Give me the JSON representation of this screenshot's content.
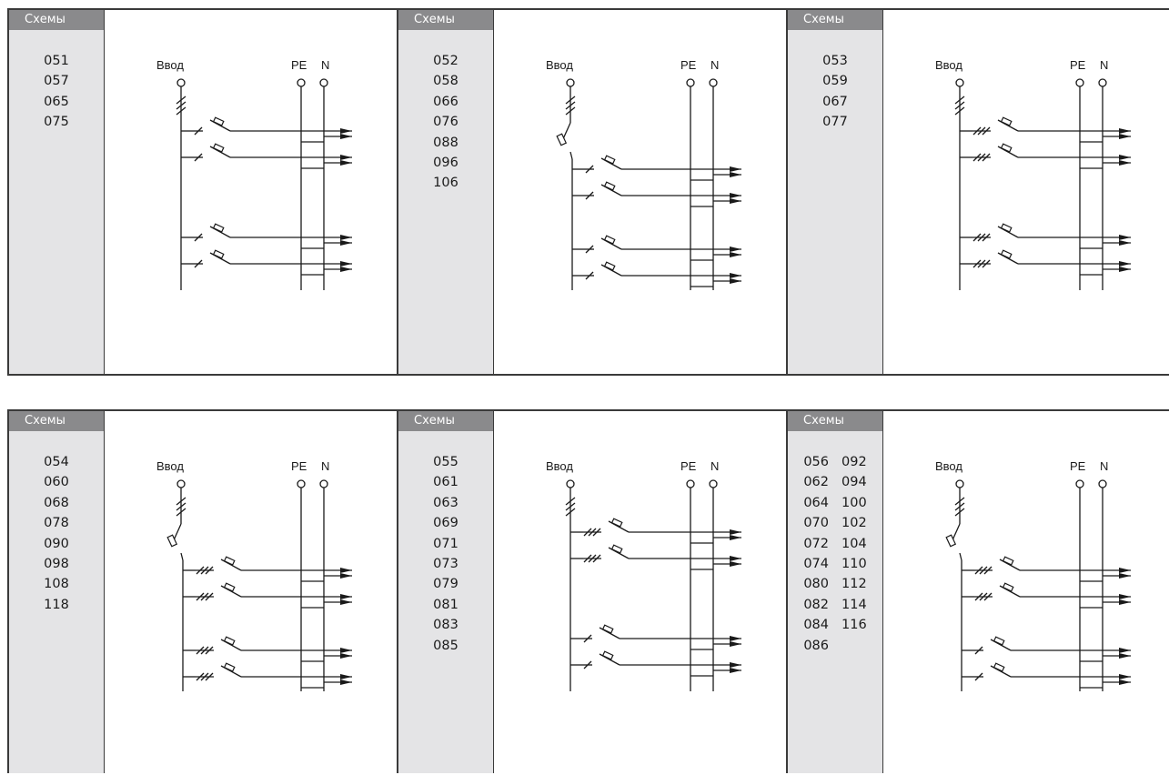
{
  "panels": [
    {
      "tab": "Схемы",
      "columns": [
        [
          "051",
          "057",
          "065",
          "075"
        ]
      ],
      "labels": {
        "input": "Ввод",
        "pe": "PE",
        "n": "N"
      },
      "main_switch": false,
      "branches": [
        1,
        1,
        1,
        1
      ]
    },
    {
      "tab": "Схемы",
      "columns": [
        [
          "052",
          "058",
          "066",
          "076",
          "088",
          "096",
          "106"
        ]
      ],
      "labels": {
        "input": "Ввод",
        "pe": "PE",
        "n": "N"
      },
      "main_switch": true,
      "branches": [
        1,
        1,
        1,
        1
      ]
    },
    {
      "tab": "Схемы",
      "columns": [
        [
          "053",
          "059",
          "067",
          "077"
        ]
      ],
      "labels": {
        "input": "Ввод",
        "pe": "PE",
        "n": "N"
      },
      "main_switch": false,
      "branches": [
        3,
        3,
        3,
        3
      ]
    },
    {
      "tab": "Схемы",
      "columns": [
        [
          "054",
          "060",
          "068",
          "078",
          "090",
          "098",
          "108",
          "118"
        ]
      ],
      "labels": {
        "input": "Ввод",
        "pe": "PE",
        "n": "N"
      },
      "main_switch": true,
      "branches": [
        3,
        3,
        3,
        3
      ]
    },
    {
      "tab": "Схемы",
      "columns": [
        [
          "055",
          "061",
          "063",
          "069",
          "071",
          "073",
          "079",
          "081",
          "083",
          "085"
        ]
      ],
      "labels": {
        "input": "Ввод",
        "pe": "PE",
        "n": "N"
      },
      "main_switch": false,
      "branches": [
        3,
        3,
        1,
        1
      ]
    },
    {
      "tab": "Схемы",
      "columns": [
        [
          "056",
          "062",
          "064",
          "070",
          "072",
          "074",
          "080",
          "082",
          "084",
          "086"
        ],
        [
          "092",
          "094",
          "100",
          "102",
          "104",
          "110",
          "112",
          "114",
          "116"
        ]
      ],
      "labels": {
        "input": "Ввод",
        "pe": "PE",
        "n": "N"
      },
      "main_switch": true,
      "branches": [
        3,
        3,
        1,
        1
      ]
    }
  ]
}
